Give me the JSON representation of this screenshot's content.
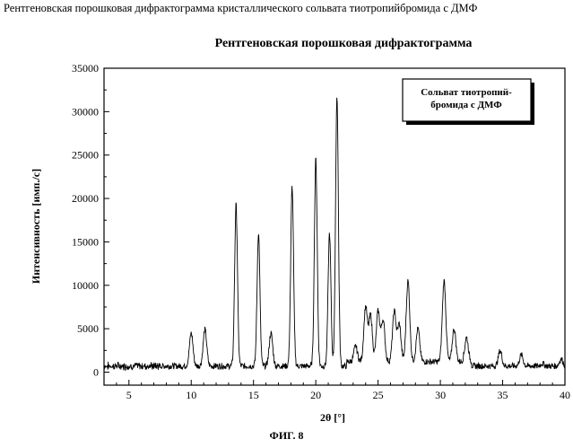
{
  "caption": "Рентгеновская порошковая дифрактограмма кристаллического сольвата тиотропийбромида с ДМФ",
  "figure_label": "ФИГ. 8",
  "chart_data": {
    "type": "line",
    "title": "Рентгеновская порошковая дифрактограмма",
    "xlabel": "2θ [°]",
    "ylabel": "Интенсивность [имп./с]",
    "xlim": [
      3,
      40
    ],
    "ylim": [
      -1500,
      35000
    ],
    "xticks": [
      5,
      10,
      15,
      20,
      25,
      30,
      35,
      40
    ],
    "yticks": [
      0,
      5000,
      10000,
      15000,
      20000,
      25000,
      30000,
      35000
    ],
    "legend": {
      "placement": "top-right",
      "lines": [
        "Сольват тиотропий-",
        "бромида с ДМФ"
      ]
    },
    "series": [
      {
        "peaks": [
          {
            "x": 10.0,
            "y": 4500
          },
          {
            "x": 11.1,
            "y": 4900
          },
          {
            "x": 13.6,
            "y": 19300
          },
          {
            "x": 15.4,
            "y": 16000
          },
          {
            "x": 16.4,
            "y": 4500
          },
          {
            "x": 18.1,
            "y": 21400
          },
          {
            "x": 20.0,
            "y": 24600
          },
          {
            "x": 21.1,
            "y": 16000
          },
          {
            "x": 21.7,
            "y": 31700
          },
          {
            "x": 23.2,
            "y": 2500
          },
          {
            "x": 24.0,
            "y": 7000
          },
          {
            "x": 24.4,
            "y": 6000
          },
          {
            "x": 25.0,
            "y": 6500
          },
          {
            "x": 25.4,
            "y": 5500
          },
          {
            "x": 26.3,
            "y": 6500
          },
          {
            "x": 26.7,
            "y": 5000
          },
          {
            "x": 27.4,
            "y": 10000
          },
          {
            "x": 28.2,
            "y": 4500
          },
          {
            "x": 30.3,
            "y": 10000
          },
          {
            "x": 31.1,
            "y": 4500
          },
          {
            "x": 32.1,
            "y": 3500
          },
          {
            "x": 34.8,
            "y": 2500
          },
          {
            "x": 36.5,
            "y": 2000
          },
          {
            "x": 38.2,
            "y": 1000
          },
          {
            "x": 39.7,
            "y": 1500
          }
        ]
      }
    ]
  }
}
